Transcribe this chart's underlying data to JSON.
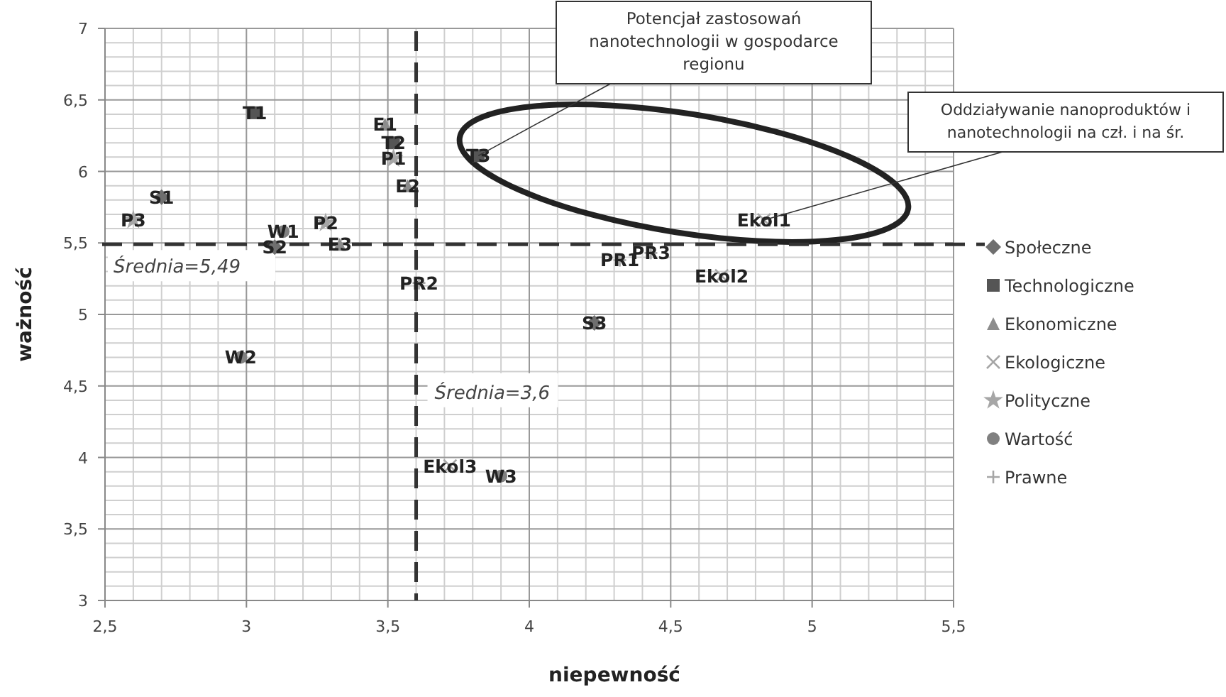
{
  "chart_data": {
    "type": "scatter",
    "xlabel": "niepewność",
    "ylabel": "ważność",
    "xlim": [
      2.5,
      5.5
    ],
    "ylim": [
      3,
      7
    ],
    "xticks": [
      {
        "value": 2.5,
        "label": "2,5"
      },
      3,
      {
        "value": 3.5,
        "label": "3,5"
      },
      4,
      {
        "value": 4.5,
        "label": "4,5"
      },
      5,
      {
        "value": 5.5,
        "label": "5,5"
      }
    ],
    "yticks": [
      3,
      {
        "value": 3.5,
        "label": "3,5"
      },
      4,
      {
        "value": 4.5,
        "label": "4,5"
      },
      5,
      {
        "value": 5.5,
        "label": "5,5"
      },
      6,
      {
        "value": 6.5,
        "label": "6,5"
      },
      7
    ],
    "grid": true,
    "legend": "right",
    "series": [
      {
        "name": "Społeczne",
        "color": "#6f6f6f",
        "marker": "diamond",
        "x": [
          2.7,
          3.1,
          4.23
        ],
        "values": [
          5.82,
          5.47,
          4.94
        ],
        "value_labels": [
          "S1",
          "S2",
          "S3"
        ]
      },
      {
        "name": "Technologiczne",
        "color": "#555555",
        "marker": "square",
        "x": [
          3.03,
          3.52,
          3.82
        ],
        "values": [
          6.41,
          6.2,
          6.11
        ],
        "value_labels": [
          "T1",
          "T2",
          "T3"
        ]
      },
      {
        "name": "Ekonomiczne",
        "color": "#8c8c8c",
        "marker": "triangle",
        "x": [
          3.49,
          3.57,
          3.33
        ],
        "values": [
          6.33,
          5.9,
          5.49
        ],
        "value_labels": [
          "E1",
          "E2",
          "E3"
        ]
      },
      {
        "name": "Ekologiczne",
        "color": "#a6a6a6",
        "marker": "x",
        "x": [
          4.83,
          4.68,
          3.72
        ],
        "values": [
          5.66,
          5.27,
          3.94
        ],
        "value_labels": [
          "Ekol1",
          "Ekol2",
          "Ekol3"
        ]
      },
      {
        "name": "Polityczne",
        "color": "#a6a6a6",
        "marker": "star",
        "x": [
          3.52,
          3.28,
          2.6
        ],
        "values": [
          6.09,
          5.64,
          5.66
        ],
        "value_labels": [
          "P1",
          "P2",
          "P3"
        ]
      },
      {
        "name": "Wartość",
        "color": "#808080",
        "marker": "circle",
        "x": [
          3.13,
          2.98,
          3.9
        ],
        "values": [
          5.58,
          4.7,
          3.87
        ],
        "value_labels": [
          "W1",
          "W2",
          "W3"
        ]
      },
      {
        "name": "Prawne",
        "color": "#a6a6a6",
        "marker": "cross",
        "x": [
          4.32,
          3.61,
          4.43
        ],
        "values": [
          5.38,
          5.22,
          5.43
        ],
        "value_labels": [
          "PR1",
          "PR2",
          "PR3"
        ]
      }
    ],
    "ref_lines": [
      {
        "axis": "y",
        "value": 5.49,
        "label": "Średnia=5,49",
        "color": "#333333",
        "line_style": "dashed"
      },
      {
        "axis": "x",
        "value": 3.6,
        "label": "Średnia=3,6",
        "color": "#333333",
        "line_style": "dashed"
      }
    ],
    "annotations": [
      {
        "text": "Potencjał zastosowań nanotechnologii w gospodarce regionu",
        "x": 3.82,
        "y": 6.11
      },
      {
        "text": "Oddziaływanie nanoproduktów i nanotechnologii na czł. i na śr.",
        "x": 4.83,
        "y": 5.66
      }
    ]
  }
}
